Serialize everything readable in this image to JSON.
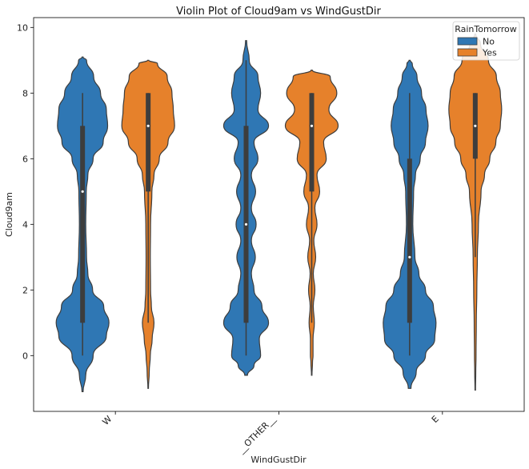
{
  "chart_data": {
    "type": "violin",
    "title": "Violin Plot of Cloud9am vs WindGustDir",
    "xlabel": "WindGustDir",
    "ylabel": "Cloud9am",
    "categories": [
      "W",
      "__OTHER__",
      "E"
    ],
    "ylim": [
      -1.7,
      10.3
    ],
    "yticks": [
      0,
      2,
      4,
      6,
      8,
      10
    ],
    "legend": {
      "title": "RainTomorrow",
      "position": "top-right",
      "entries": [
        {
          "name": "No",
          "color": "#2f77b4"
        },
        {
          "name": "Yes",
          "color": "#e6812b"
        }
      ]
    },
    "groups": [
      {
        "category": "W",
        "violins": [
          {
            "hue": "No",
            "color": "#2f77b4",
            "min": 0,
            "q1": 1,
            "median": 5,
            "q3": 7,
            "max": 8,
            "extent": [
              -1.1,
              9.1
            ],
            "density": [
              [
                -1.1,
                0.02
              ],
              [
                -0.6,
                0.12
              ],
              [
                0,
                0.4
              ],
              [
                0.6,
                0.9
              ],
              [
                1,
                1.0
              ],
              [
                1.5,
                0.8
              ],
              [
                2,
                0.38
              ],
              [
                2.5,
                0.2
              ],
              [
                3,
                0.15
              ],
              [
                4,
                0.12
              ],
              [
                5,
                0.14
              ],
              [
                5.5,
                0.2
              ],
              [
                6,
                0.4
              ],
              [
                6.5,
                0.78
              ],
              [
                7,
                0.95
              ],
              [
                7.5,
                0.9
              ],
              [
                8,
                0.68
              ],
              [
                8.5,
                0.42
              ],
              [
                9,
                0.15
              ],
              [
                9.1,
                0.02
              ]
            ]
          },
          {
            "hue": "Yes",
            "color": "#e6812b",
            "min": 1,
            "q1": 5,
            "median": 7,
            "q3": 8,
            "max": 8,
            "extent": [
              -1,
              9
            ],
            "density": [
              [
                -1,
                0.01
              ],
              [
                -0.5,
                0.04
              ],
              [
                0,
                0.08
              ],
              [
                0.5,
                0.15
              ],
              [
                1,
                0.22
              ],
              [
                1.5,
                0.12
              ],
              [
                2,
                0.09
              ],
              [
                3,
                0.08
              ],
              [
                4,
                0.09
              ],
              [
                5,
                0.14
              ],
              [
                5.5,
                0.22
              ],
              [
                6,
                0.42
              ],
              [
                6.5,
                0.75
              ],
              [
                7,
                1.0
              ],
              [
                7.5,
                0.95
              ],
              [
                8,
                0.9
              ],
              [
                8.5,
                0.72
              ],
              [
                8.9,
                0.35
              ],
              [
                9,
                0.02
              ]
            ]
          }
        ]
      },
      {
        "category": "__OTHER__",
        "violins": [
          {
            "hue": "No",
            "color": "#2f77b4",
            "min": 0,
            "q1": 1,
            "median": 4,
            "q3": 7,
            "max": 9,
            "extent": [
              -0.6,
              9.6
            ],
            "density": [
              [
                -0.6,
                0.05
              ],
              [
                -0.3,
                0.3
              ],
              [
                0,
                0.55
              ],
              [
                0.5,
                0.5
              ],
              [
                1,
                0.85
              ],
              [
                1.5,
                0.6
              ],
              [
                2,
                0.3
              ],
              [
                2.5,
                0.2
              ],
              [
                3,
                0.35
              ],
              [
                3.5,
                0.2
              ],
              [
                4,
                0.38
              ],
              [
                4.5,
                0.2
              ],
              [
                5,
                0.36
              ],
              [
                5.5,
                0.2
              ],
              [
                6,
                0.45
              ],
              [
                6.5,
                0.3
              ],
              [
                7,
                0.85
              ],
              [
                7.5,
                0.45
              ],
              [
                8,
                0.55
              ],
              [
                8.5,
                0.45
              ],
              [
                9,
                0.12
              ],
              [
                9.6,
                0.02
              ]
            ]
          },
          {
            "hue": "Yes",
            "color": "#e6812b",
            "min": 1,
            "q1": 5,
            "median": 7,
            "q3": 8,
            "max": 8,
            "extent": [
              -0.6,
              8.7
            ],
            "density": [
              [
                -0.6,
                0.01
              ],
              [
                -0.2,
                0.03
              ],
              [
                0,
                0.05
              ],
              [
                0.5,
                0.05
              ],
              [
                1,
                0.1
              ],
              [
                1.5,
                0.06
              ],
              [
                2,
                0.12
              ],
              [
                2.5,
                0.06
              ],
              [
                3,
                0.15
              ],
              [
                3.5,
                0.08
              ],
              [
                4,
                0.2
              ],
              [
                4.5,
                0.12
              ],
              [
                5,
                0.3
              ],
              [
                5.5,
                0.2
              ],
              [
                6,
                0.55
              ],
              [
                6.5,
                0.45
              ],
              [
                7,
                1.0
              ],
              [
                7.5,
                0.65
              ],
              [
                8,
                0.95
              ],
              [
                8.5,
                0.7
              ],
              [
                8.7,
                0.02
              ]
            ]
          }
        ]
      },
      {
        "category": "E",
        "violins": [
          {
            "hue": "No",
            "color": "#2f77b4",
            "min": 0,
            "q1": 1,
            "median": 3,
            "q3": 6,
            "max": 8,
            "extent": [
              -1,
              9
            ],
            "density": [
              [
                -1,
                0.05
              ],
              [
                -0.5,
                0.25
              ],
              [
                0,
                0.6
              ],
              [
                0.5,
                0.95
              ],
              [
                1,
                1.0
              ],
              [
                1.5,
                0.9
              ],
              [
                2,
                0.6
              ],
              [
                2.5,
                0.35
              ],
              [
                3,
                0.2
              ],
              [
                4,
                0.12
              ],
              [
                5,
                0.15
              ],
              [
                5.5,
                0.22
              ],
              [
                6,
                0.4
              ],
              [
                6.5,
                0.6
              ],
              [
                7,
                0.7
              ],
              [
                7.5,
                0.62
              ],
              [
                8,
                0.45
              ],
              [
                8.5,
                0.28
              ],
              [
                8.9,
                0.1
              ],
              [
                9,
                0.02
              ]
            ]
          },
          {
            "hue": "Yes",
            "color": "#e6812b",
            "min": 3,
            "q1": 6,
            "median": 7,
            "q3": 8,
            "max": 8,
            "extent": [
              -1.05,
              9.8
            ],
            "density": [
              [
                -1.05,
                0.01
              ],
              [
                -0.5,
                0.02
              ],
              [
                0,
                0.03
              ],
              [
                1,
                0.04
              ],
              [
                2,
                0.06
              ],
              [
                3,
                0.08
              ],
              [
                4,
                0.12
              ],
              [
                5,
                0.22
              ],
              [
                5.5,
                0.35
              ],
              [
                6,
                0.55
              ],
              [
                6.5,
                0.78
              ],
              [
                7,
                0.95
              ],
              [
                7.5,
                1.0
              ],
              [
                8,
                0.95
              ],
              [
                8.5,
                0.8
              ],
              [
                9,
                0.5
              ],
              [
                9.5,
                0.2
              ],
              [
                9.8,
                0.02
              ]
            ]
          }
        ]
      }
    ]
  }
}
